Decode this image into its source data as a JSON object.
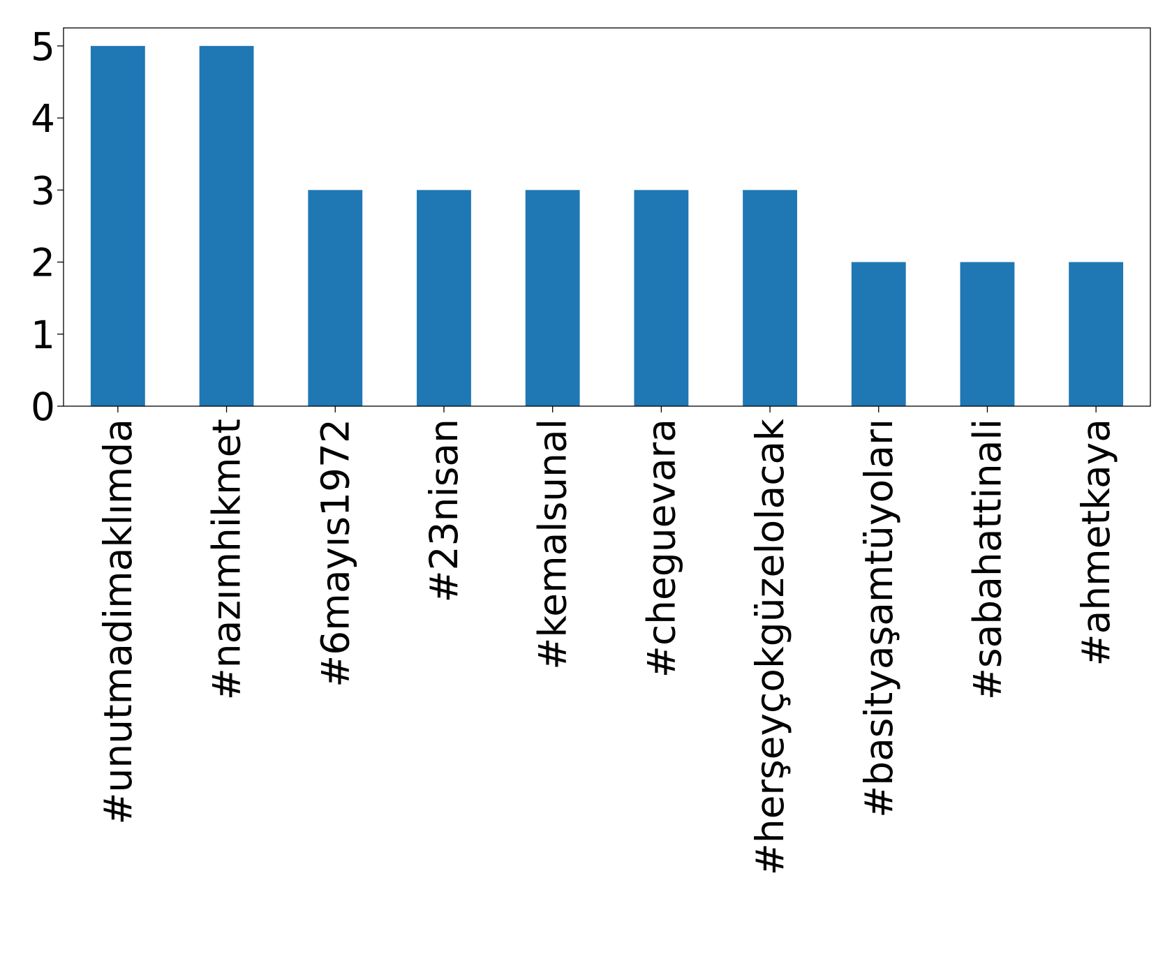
{
  "chart_data": {
    "type": "bar",
    "title": "",
    "xlabel": "",
    "ylabel": "",
    "categories": [
      "#unutmadimaklımda",
      "#nazımhikmet",
      "#6mayıs1972",
      "#23nisan",
      "#kemalsunal",
      "#cheguevara",
      "#herşeyçokgüzelolacak",
      "#basityaşamtüyoları",
      "#sabahattinali",
      "#ahmetkaya"
    ],
    "values": [
      5,
      5,
      3,
      3,
      3,
      3,
      3,
      2,
      2,
      2
    ],
    "ylim": [
      0,
      5.25
    ],
    "yticks": [
      "0",
      "1",
      "2",
      "3",
      "4",
      "5"
    ],
    "grid": false,
    "legend": false,
    "colors": {
      "bar": "#1f77b4",
      "axis": "#000000",
      "background": "#ffffff"
    }
  }
}
